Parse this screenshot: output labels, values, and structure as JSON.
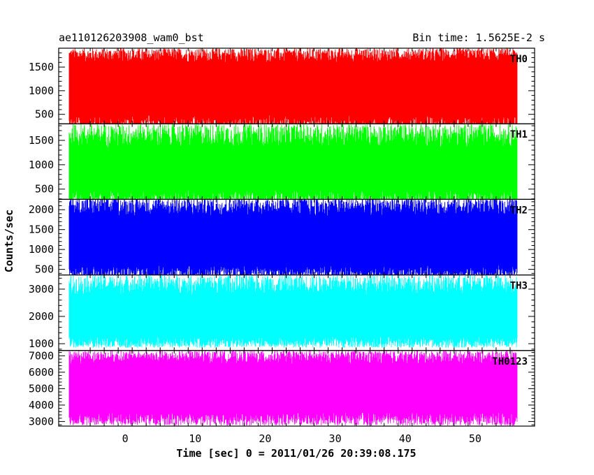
{
  "title": "ae110126203908_wam0_bst",
  "bin_time": "Bin time: 1.5625E-2 s",
  "chart_data": {
    "type": "line",
    "xlabel": "Time [sec] 0 = 2011/01/26 20:39:08.175",
    "ylabel": "Counts/sec",
    "xlim": [
      -9.5,
      58.5
    ],
    "x_ticks": [
      0,
      10,
      20,
      30,
      40,
      50
    ],
    "x_tick_labels": [
      "0",
      "10",
      "20",
      "30",
      "40",
      "50"
    ],
    "x_data_range": [
      -8,
      56
    ],
    "grid": false,
    "panels": [
      {
        "name": "TH0",
        "color": "#ff0000",
        "ylim": [
          300,
          1900
        ],
        "y_ticks": [
          500,
          1000,
          1500
        ],
        "y_tick_labels": [
          "500",
          "1000",
          "1500"
        ],
        "band": [
          480,
          1600
        ],
        "range": [
          100,
          1900
        ]
      },
      {
        "name": "TH1",
        "color": "#00ff00",
        "ylim": [
          290,
          1840
        ],
        "y_ticks": [
          500,
          1000,
          1500
        ],
        "y_tick_labels": [
          "500",
          "1000",
          "1500"
        ],
        "band": [
          480,
          1350
        ],
        "range": [
          100,
          1840
        ]
      },
      {
        "name": "TH2",
        "color": "#0000ff",
        "ylim": [
          360,
          2260
        ],
        "y_ticks": [
          500,
          1000,
          1500,
          2000
        ],
        "y_tick_labels": [
          "500",
          "1000",
          "1500",
          "2000"
        ],
        "band": [
          600,
          1850
        ],
        "range": [
          200,
          2300
        ]
      },
      {
        "name": "TH3",
        "color": "#00ffff",
        "ylim": [
          750,
          3520
        ],
        "y_ticks": [
          1000,
          2000,
          3000
        ],
        "y_tick_labels": [
          "1000",
          "2000",
          "3000"
        ],
        "band": [
          1250,
          2800
        ],
        "range": [
          850,
          3520
        ]
      },
      {
        "name": "TH0123",
        "color": "#ff00ff",
        "ylim": [
          2720,
          7320
        ],
        "y_ticks": [
          3000,
          4000,
          5000,
          6000,
          7000
        ],
        "y_tick_labels": [
          "3000",
          "4000",
          "5000",
          "6000",
          "7000"
        ],
        "band": [
          3550,
          6500
        ],
        "range": [
          2750,
          7320
        ]
      }
    ]
  }
}
